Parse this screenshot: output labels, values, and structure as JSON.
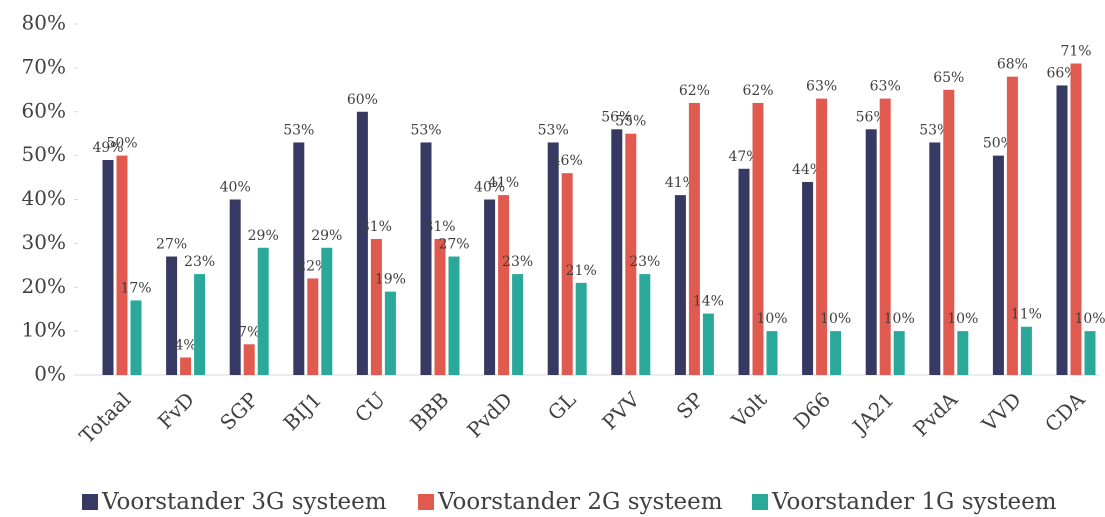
{
  "chart_data": {
    "type": "bar",
    "categories": [
      "Totaal",
      "FvD",
      "SGP",
      "BIJ1",
      "CU",
      "BBB",
      "PvdD",
      "GL",
      "PVV",
      "SP",
      "Volt",
      "D66",
      "JA21",
      "PvdA",
      "VVD",
      "CDA"
    ],
    "series": [
      {
        "name": "Voorstander 3G systeem",
        "color": "#363a63",
        "values": [
          49,
          27,
          40,
          53,
          60,
          53,
          40,
          53,
          56,
          41,
          47,
          44,
          56,
          53,
          50,
          66
        ],
        "value_labels": [
          "49%",
          "27%",
          "40%",
          "53%",
          "60%",
          "53%",
          "40%",
          "53%",
          "56%",
          "41%",
          "47%",
          "44%",
          "56%",
          "53%",
          "50%",
          "66%"
        ]
      },
      {
        "name": "Voorstander 2G systeem",
        "color": "#e05a4f",
        "values": [
          50,
          4,
          7,
          22,
          31,
          31,
          41,
          46,
          55,
          62,
          62,
          63,
          63,
          65,
          68,
          71
        ],
        "value_labels": [
          "50%",
          "4%",
          "7%",
          "22%",
          "31%",
          "31%",
          "41%",
          "46%",
          "55%",
          "62%",
          "62%",
          "63%",
          "63%",
          "65%",
          "68%",
          "71%"
        ]
      },
      {
        "name": "Voorstander 1G systeem",
        "color": "#2aa89a",
        "values": [
          17,
          23,
          29,
          29,
          19,
          27,
          23,
          21,
          23,
          14,
          10,
          10,
          10,
          10,
          11,
          10
        ],
        "value_labels": [
          "17%",
          "23%",
          "29%",
          "29%",
          "19%",
          "27%",
          "23%",
          "21%",
          "23%",
          "14%",
          "10%",
          "10%",
          "10%",
          "10%",
          "11%",
          "10%"
        ]
      }
    ],
    "ylim": [
      0,
      80
    ],
    "yticks": [
      {
        "value": 0,
        "label": "0%"
      },
      {
        "value": 10,
        "label": "10%"
      },
      {
        "value": 20,
        "label": "20%"
      },
      {
        "value": 30,
        "label": "30%"
      },
      {
        "value": 40,
        "label": "40%"
      },
      {
        "value": 50,
        "label": "50%"
      },
      {
        "value": 60,
        "label": "60%"
      },
      {
        "value": 70,
        "label": "70%"
      },
      {
        "value": 80,
        "label": "80%"
      }
    ],
    "legend": "bottom"
  }
}
